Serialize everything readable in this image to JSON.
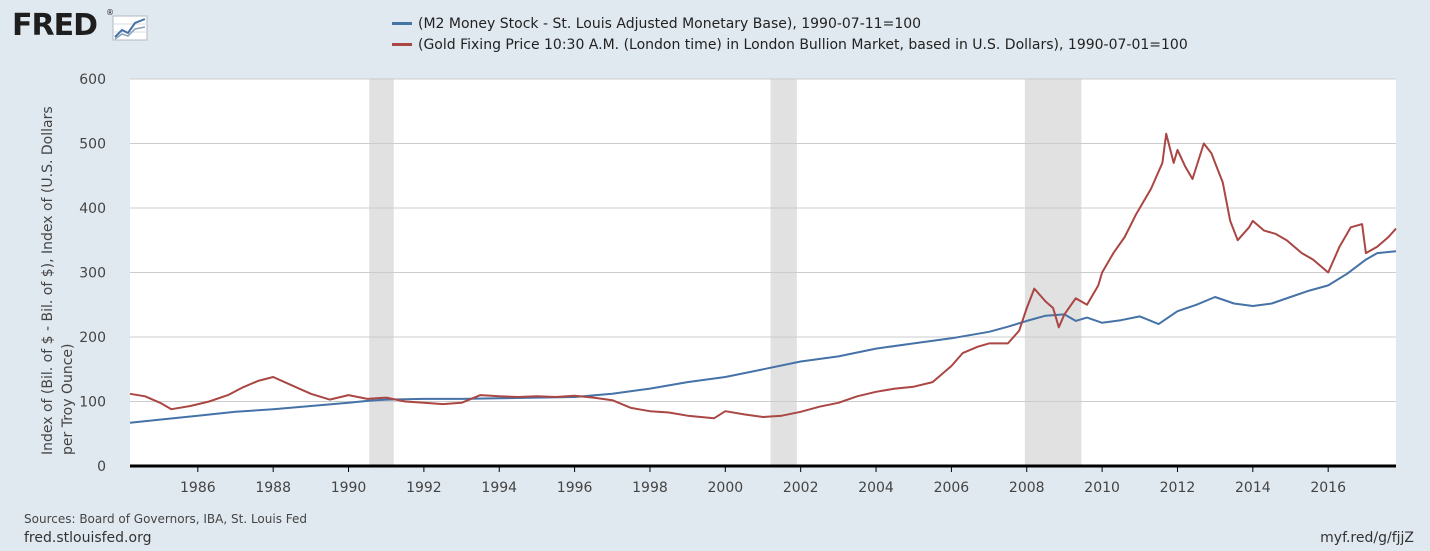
{
  "header": {
    "logo_text": "FRED",
    "logo_mark": "®",
    "logo_graph_icon": "line-chart-icon"
  },
  "footer": {
    "sources": "Sources: Board of Governors, IBA, St. Louis Fed",
    "site": "fred.stlouisfed.org",
    "short_link": "myf.red/g/fjjZ"
  },
  "colors": {
    "background": "#e1e9f0",
    "plot": "#ffffff",
    "grid": "#cccccc",
    "recession": "#e1e1e1",
    "m2": "#4572a7",
    "gold": "#aa4643",
    "axis": "#000000"
  },
  "chart_data": {
    "type": "line",
    "title": "",
    "xlabel": "",
    "ylabel": "Index of (Bil. of $ - Bil. of $), Index of (U.S. Dollars per Troy Ounce)",
    "xlim": [
      1984.2,
      2017.8
    ],
    "ylim": [
      0,
      600
    ],
    "grid": true,
    "legend_position": "top",
    "x_ticks": [
      "1986",
      "1988",
      "1990",
      "1992",
      "1994",
      "1996",
      "1998",
      "2000",
      "2002",
      "2004",
      "2006",
      "2008",
      "2010",
      "2012",
      "2014",
      "2016"
    ],
    "y_ticks": [
      "0",
      "100",
      "200",
      "300",
      "400",
      "500",
      "600"
    ],
    "recessions": [
      [
        1990.55,
        1991.2
      ],
      [
        2001.2,
        2001.9
      ],
      [
        2007.95,
        2009.45
      ]
    ],
    "series": [
      {
        "name": "(M2 Money Stock - St. Louis Adjusted Monetary Base), 1990-07-11=100",
        "color": "#4572a7",
        "x": [
          1984.2,
          1985,
          1986,
          1987,
          1988,
          1989,
          1990,
          1990.5,
          1991,
          1992,
          1993,
          1994,
          1995,
          1996,
          1997,
          1998,
          1999,
          2000,
          2001,
          2002,
          2003,
          2004,
          2005,
          2006,
          2007,
          2007.5,
          2008,
          2008.5,
          2009,
          2009.3,
          2009.6,
          2010,
          2010.5,
          2011,
          2011.5,
          2012,
          2012.5,
          2013,
          2013.5,
          2014,
          2014.5,
          2015,
          2015.5,
          2016,
          2016.5,
          2017,
          2017.3,
          2017.8
        ],
        "y": [
          67,
          72,
          78,
          84,
          88,
          93,
          98,
          101,
          103,
          104,
          104,
          105,
          106,
          107,
          112,
          120,
          130,
          138,
          150,
          162,
          170,
          182,
          190,
          198,
          208,
          216,
          225,
          233,
          235,
          225,
          230,
          222,
          226,
          232,
          220,
          240,
          250,
          262,
          252,
          248,
          252,
          262,
          272,
          280,
          298,
          320,
          330,
          333
        ]
      },
      {
        "name": "(Gold Fixing Price 10:30 A.M. (London time) in London Bullion Market, based in U.S. Dollars), 1990-07-01=100",
        "color": "#aa4643",
        "x": [
          1984.2,
          1984.6,
          1985,
          1985.3,
          1985.8,
          1986.3,
          1986.8,
          1987.2,
          1987.6,
          1988,
          1988.5,
          1989,
          1989.5,
          1990,
          1990.5,
          1991,
          1991.5,
          1992,
          1992.5,
          1993,
          1993.5,
          1994,
          1994.5,
          1995,
          1995.5,
          1996,
          1996.5,
          1997,
          1997.5,
          1998,
          1998.5,
          1999,
          1999.7,
          2000,
          2000.5,
          2001,
          2001.5,
          2002,
          2002.5,
          2003,
          2003.5,
          2004,
          2004.5,
          2005,
          2005.5,
          2006,
          2006.3,
          2006.7,
          2007,
          2007.5,
          2007.8,
          2008,
          2008.2,
          2008.5,
          2008.7,
          2008.85,
          2009,
          2009.3,
          2009.6,
          2009.9,
          2010,
          2010.3,
          2010.6,
          2010.9,
          2011,
          2011.3,
          2011.6,
          2011.7,
          2011.9,
          2012,
          2012.2,
          2012.4,
          2012.7,
          2012.9,
          2013,
          2013.2,
          2013.4,
          2013.6,
          2013.9,
          2014,
          2014.3,
          2014.6,
          2014.9,
          2015,
          2015.3,
          2015.6,
          2015.9,
          2016,
          2016.3,
          2016.6,
          2016.9,
          2017,
          2017.3,
          2017.6,
          2017.8
        ],
        "y": [
          112,
          108,
          98,
          88,
          93,
          100,
          110,
          122,
          132,
          138,
          125,
          112,
          103,
          110,
          104,
          106,
          100,
          98,
          96,
          98,
          110,
          108,
          107,
          108,
          107,
          109,
          106,
          102,
          90,
          85,
          83,
          78,
          74,
          85,
          80,
          76,
          78,
          84,
          92,
          98,
          108,
          115,
          120,
          123,
          130,
          155,
          175,
          185,
          190,
          190,
          210,
          245,
          275,
          255,
          245,
          215,
          235,
          260,
          250,
          280,
          300,
          330,
          355,
          390,
          400,
          430,
          470,
          515,
          470,
          490,
          465,
          445,
          500,
          485,
          470,
          440,
          380,
          350,
          370,
          380,
          365,
          360,
          350,
          345,
          330,
          320,
          305,
          300,
          340,
          370,
          375,
          330,
          340,
          355,
          368
        ]
      }
    ]
  }
}
